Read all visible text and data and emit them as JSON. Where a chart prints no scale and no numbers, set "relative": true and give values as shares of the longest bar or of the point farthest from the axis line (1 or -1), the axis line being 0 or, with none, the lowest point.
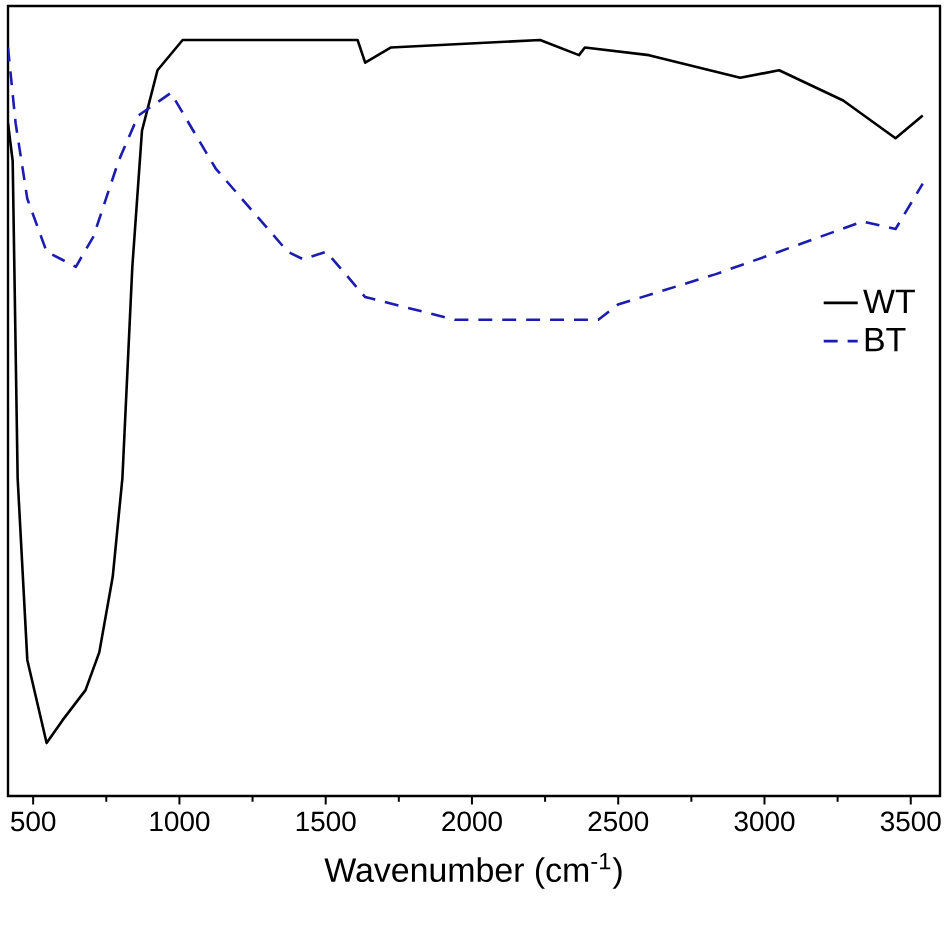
{
  "chart_data": {
    "type": "line",
    "relative": true,
    "xlabel": "Wavenumber (cm$^{-1}$)",
    "xlim": [
      414,
      3600
    ],
    "xticks": [
      500,
      1000,
      1500,
      2000,
      2500,
      3000,
      3500
    ],
    "legend": "right",
    "series": [
      {
        "name": "WT",
        "color": "#000000",
        "line_style": "solid",
        "x": [
          414,
          430,
          447,
          480,
          546,
          600,
          679,
          726,
          772,
          805,
          839,
          872,
          925,
          1011,
          1609,
          1635,
          1722,
          2233,
          2366,
          2386,
          2605,
          2917,
          3050,
          3269,
          3448,
          3541
        ],
        "values": [
          0.89,
          0.84,
          0.42,
          0.18,
          0.07,
          0.1,
          0.14,
          0.19,
          0.29,
          0.42,
          0.7,
          0.88,
          0.96,
          1.0,
          1.0,
          0.97,
          0.99,
          1.0,
          0.98,
          0.99,
          0.98,
          0.95,
          0.96,
          0.92,
          0.87,
          0.9
        ]
      },
      {
        "name": "BT",
        "color": "#1c1cb0",
        "line_style": "dashed",
        "x": [
          414,
          440,
          480,
          546,
          646,
          706,
          792,
          859,
          971,
          1124,
          1370,
          1423,
          1502,
          1635,
          1941,
          2074,
          2432,
          2499,
          2831,
          3050,
          3335,
          3448,
          3541
        ],
        "values": [
          0.99,
          0.89,
          0.79,
          0.72,
          0.7,
          0.74,
          0.84,
          0.9,
          0.93,
          0.83,
          0.72,
          0.71,
          0.72,
          0.66,
          0.63,
          0.63,
          0.63,
          0.65,
          0.69,
          0.72,
          0.76,
          0.75,
          0.81
        ]
      }
    ]
  }
}
